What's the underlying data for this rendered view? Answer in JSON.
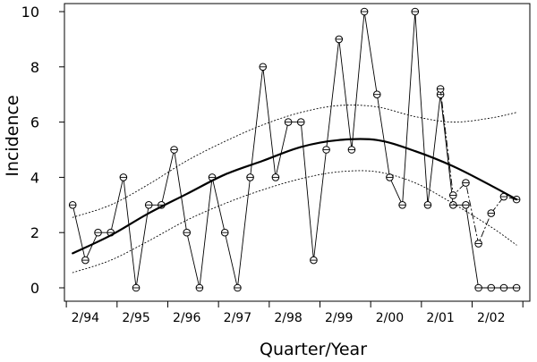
{
  "chart_data": {
    "type": "line",
    "xlabel": "Quarter/Year",
    "ylabel": "Incidence",
    "ylim": [
      0,
      10
    ],
    "y_ticks": [
      0,
      2,
      4,
      6,
      8,
      10
    ],
    "x_tick_labels": [
      "2/94",
      "2/95",
      "2/96",
      "2/97",
      "2/98",
      "2/99",
      "2/00",
      "2/01",
      "2/02"
    ],
    "grid": false,
    "series": [
      {
        "style": "solid-thin-circles",
        "points": [
          {
            "x": 1,
            "y": 3
          },
          {
            "x": 2,
            "y": 1
          },
          {
            "x": 3,
            "y": 2
          },
          {
            "x": 4,
            "y": 2
          },
          {
            "x": 5,
            "y": 4
          },
          {
            "x": 6,
            "y": 0
          },
          {
            "x": 7,
            "y": 3
          },
          {
            "x": 8,
            "y": 3
          },
          {
            "x": 9,
            "y": 5
          },
          {
            "x": 10,
            "y": 2
          },
          {
            "x": 11,
            "y": 0
          },
          {
            "x": 12,
            "y": 4
          },
          {
            "x": 13,
            "y": 2
          },
          {
            "x": 14,
            "y": 0
          },
          {
            "x": 15,
            "y": 4
          },
          {
            "x": 16,
            "y": 8
          },
          {
            "x": 17,
            "y": 4
          },
          {
            "x": 18,
            "y": 6
          },
          {
            "x": 19,
            "y": 6
          },
          {
            "x": 20,
            "y": 1
          },
          {
            "x": 21,
            "y": 5
          },
          {
            "x": 22,
            "y": 9
          },
          {
            "x": 23,
            "y": 5
          },
          {
            "x": 24,
            "y": 10
          },
          {
            "x": 25,
            "y": 7
          },
          {
            "x": 26,
            "y": 4
          },
          {
            "x": 27,
            "y": 3
          },
          {
            "x": 28,
            "y": 10
          },
          {
            "x": 29,
            "y": 3
          },
          {
            "x": 30,
            "y": 7
          },
          {
            "x": 31,
            "y": 3
          },
          {
            "x": 32,
            "y": 3
          },
          {
            "x": 33,
            "y": 0
          },
          {
            "x": 34,
            "y": 0
          },
          {
            "x": 35,
            "y": 0
          },
          {
            "x": 36,
            "y": 0
          }
        ]
      },
      {
        "style": "dashdot-circles",
        "points": [
          {
            "x": 30,
            "y": 7.2
          },
          {
            "x": 31,
            "y": 3.35
          },
          {
            "x": 32,
            "y": 3.8
          },
          {
            "x": 33,
            "y": 1.6
          },
          {
            "x": 34,
            "y": 2.7
          },
          {
            "x": 35,
            "y": 3.3
          },
          {
            "x": 36,
            "y": 3.2
          }
        ]
      },
      {
        "style": "thick-trend",
        "points": [
          {
            "x": 1,
            "y": 1.25
          },
          {
            "x": 4,
            "y": 1.9
          },
          {
            "x": 7,
            "y": 2.7
          },
          {
            "x": 10,
            "y": 3.4
          },
          {
            "x": 13,
            "y": 4.1
          },
          {
            "x": 16,
            "y": 4.6
          },
          {
            "x": 19,
            "y": 5.1
          },
          {
            "x": 22,
            "y": 5.35
          },
          {
            "x": 25,
            "y": 5.35
          },
          {
            "x": 28,
            "y": 4.95
          },
          {
            "x": 31,
            "y": 4.4
          },
          {
            "x": 34,
            "y": 3.7
          },
          {
            "x": 36,
            "y": 3.2
          }
        ]
      },
      {
        "style": "dotted-upper",
        "points": [
          {
            "x": 1,
            "y": 2.55
          },
          {
            "x": 4,
            "y": 3.0
          },
          {
            "x": 7,
            "y": 3.75
          },
          {
            "x": 10,
            "y": 4.6
          },
          {
            "x": 13,
            "y": 5.3
          },
          {
            "x": 16,
            "y": 5.9
          },
          {
            "x": 19,
            "y": 6.35
          },
          {
            "x": 22,
            "y": 6.6
          },
          {
            "x": 25,
            "y": 6.55
          },
          {
            "x": 28,
            "y": 6.2
          },
          {
            "x": 31,
            "y": 6.0
          },
          {
            "x": 34,
            "y": 6.15
          },
          {
            "x": 36,
            "y": 6.35
          }
        ]
      },
      {
        "style": "dotted-lower",
        "points": [
          {
            "x": 1,
            "y": 0.55
          },
          {
            "x": 4,
            "y": 1.0
          },
          {
            "x": 7,
            "y": 1.7
          },
          {
            "x": 10,
            "y": 2.45
          },
          {
            "x": 13,
            "y": 3.05
          },
          {
            "x": 16,
            "y": 3.55
          },
          {
            "x": 19,
            "y": 3.95
          },
          {
            "x": 22,
            "y": 4.2
          },
          {
            "x": 25,
            "y": 4.2
          },
          {
            "x": 28,
            "y": 3.8
          },
          {
            "x": 31,
            "y": 3.05
          },
          {
            "x": 34,
            "y": 2.2
          },
          {
            "x": 36,
            "y": 1.55
          }
        ]
      }
    ]
  }
}
